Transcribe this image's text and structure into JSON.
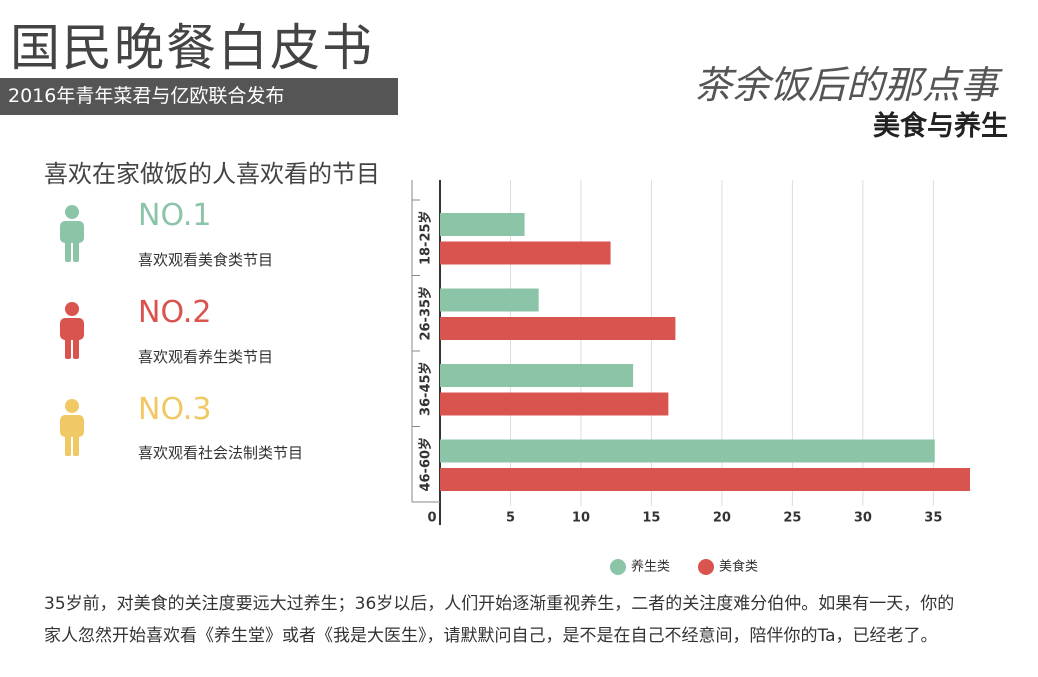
{
  "header": {
    "title": "国民晚餐白皮书",
    "publisher": "2016年青年菜君与亿欧联合发布",
    "slogan": "茶余饭后的那点事",
    "topic": "美食与养生"
  },
  "ranking": {
    "title": "喜欢在家做饭的人喜欢看的节目",
    "items": [
      {
        "rank": "NO.1",
        "text": "喜欢观看美食类节目"
      },
      {
        "rank": "NO.2",
        "text": "喜欢观看养生类节目"
      },
      {
        "rank": "NO.3",
        "text": "喜欢观看社会法制类节目"
      }
    ]
  },
  "chart_data": {
    "type": "bar",
    "orientation": "horizontal",
    "categories": [
      "18-25岁",
      "26-35岁",
      "36-45岁",
      "46-60岁"
    ],
    "series": [
      {
        "name": "养生类",
        "color": "#8cc4a8",
        "values": [
          6.0,
          7.0,
          13.7,
          35.1
        ]
      },
      {
        "name": "美食类",
        "color": "#d9534f",
        "values": [
          12.1,
          16.7,
          16.2,
          37.6
        ]
      }
    ],
    "xlim": [
      0,
      37.6
    ],
    "xticks": [
      0,
      5,
      10,
      15,
      20,
      25,
      30,
      35
    ],
    "grid": true,
    "legend": "bottom"
  },
  "footer": "35岁前，对美食的关注度要远大过养生；36岁以后，人们开始逐渐重视养生，二者的关注度难分伯仲。如果有一天，你的家人忽然开始喜欢看《养生堂》或者《我是大医生》，请默默问自己，是不是在自己不经意间，陪伴你的Ta，已经老了。"
}
